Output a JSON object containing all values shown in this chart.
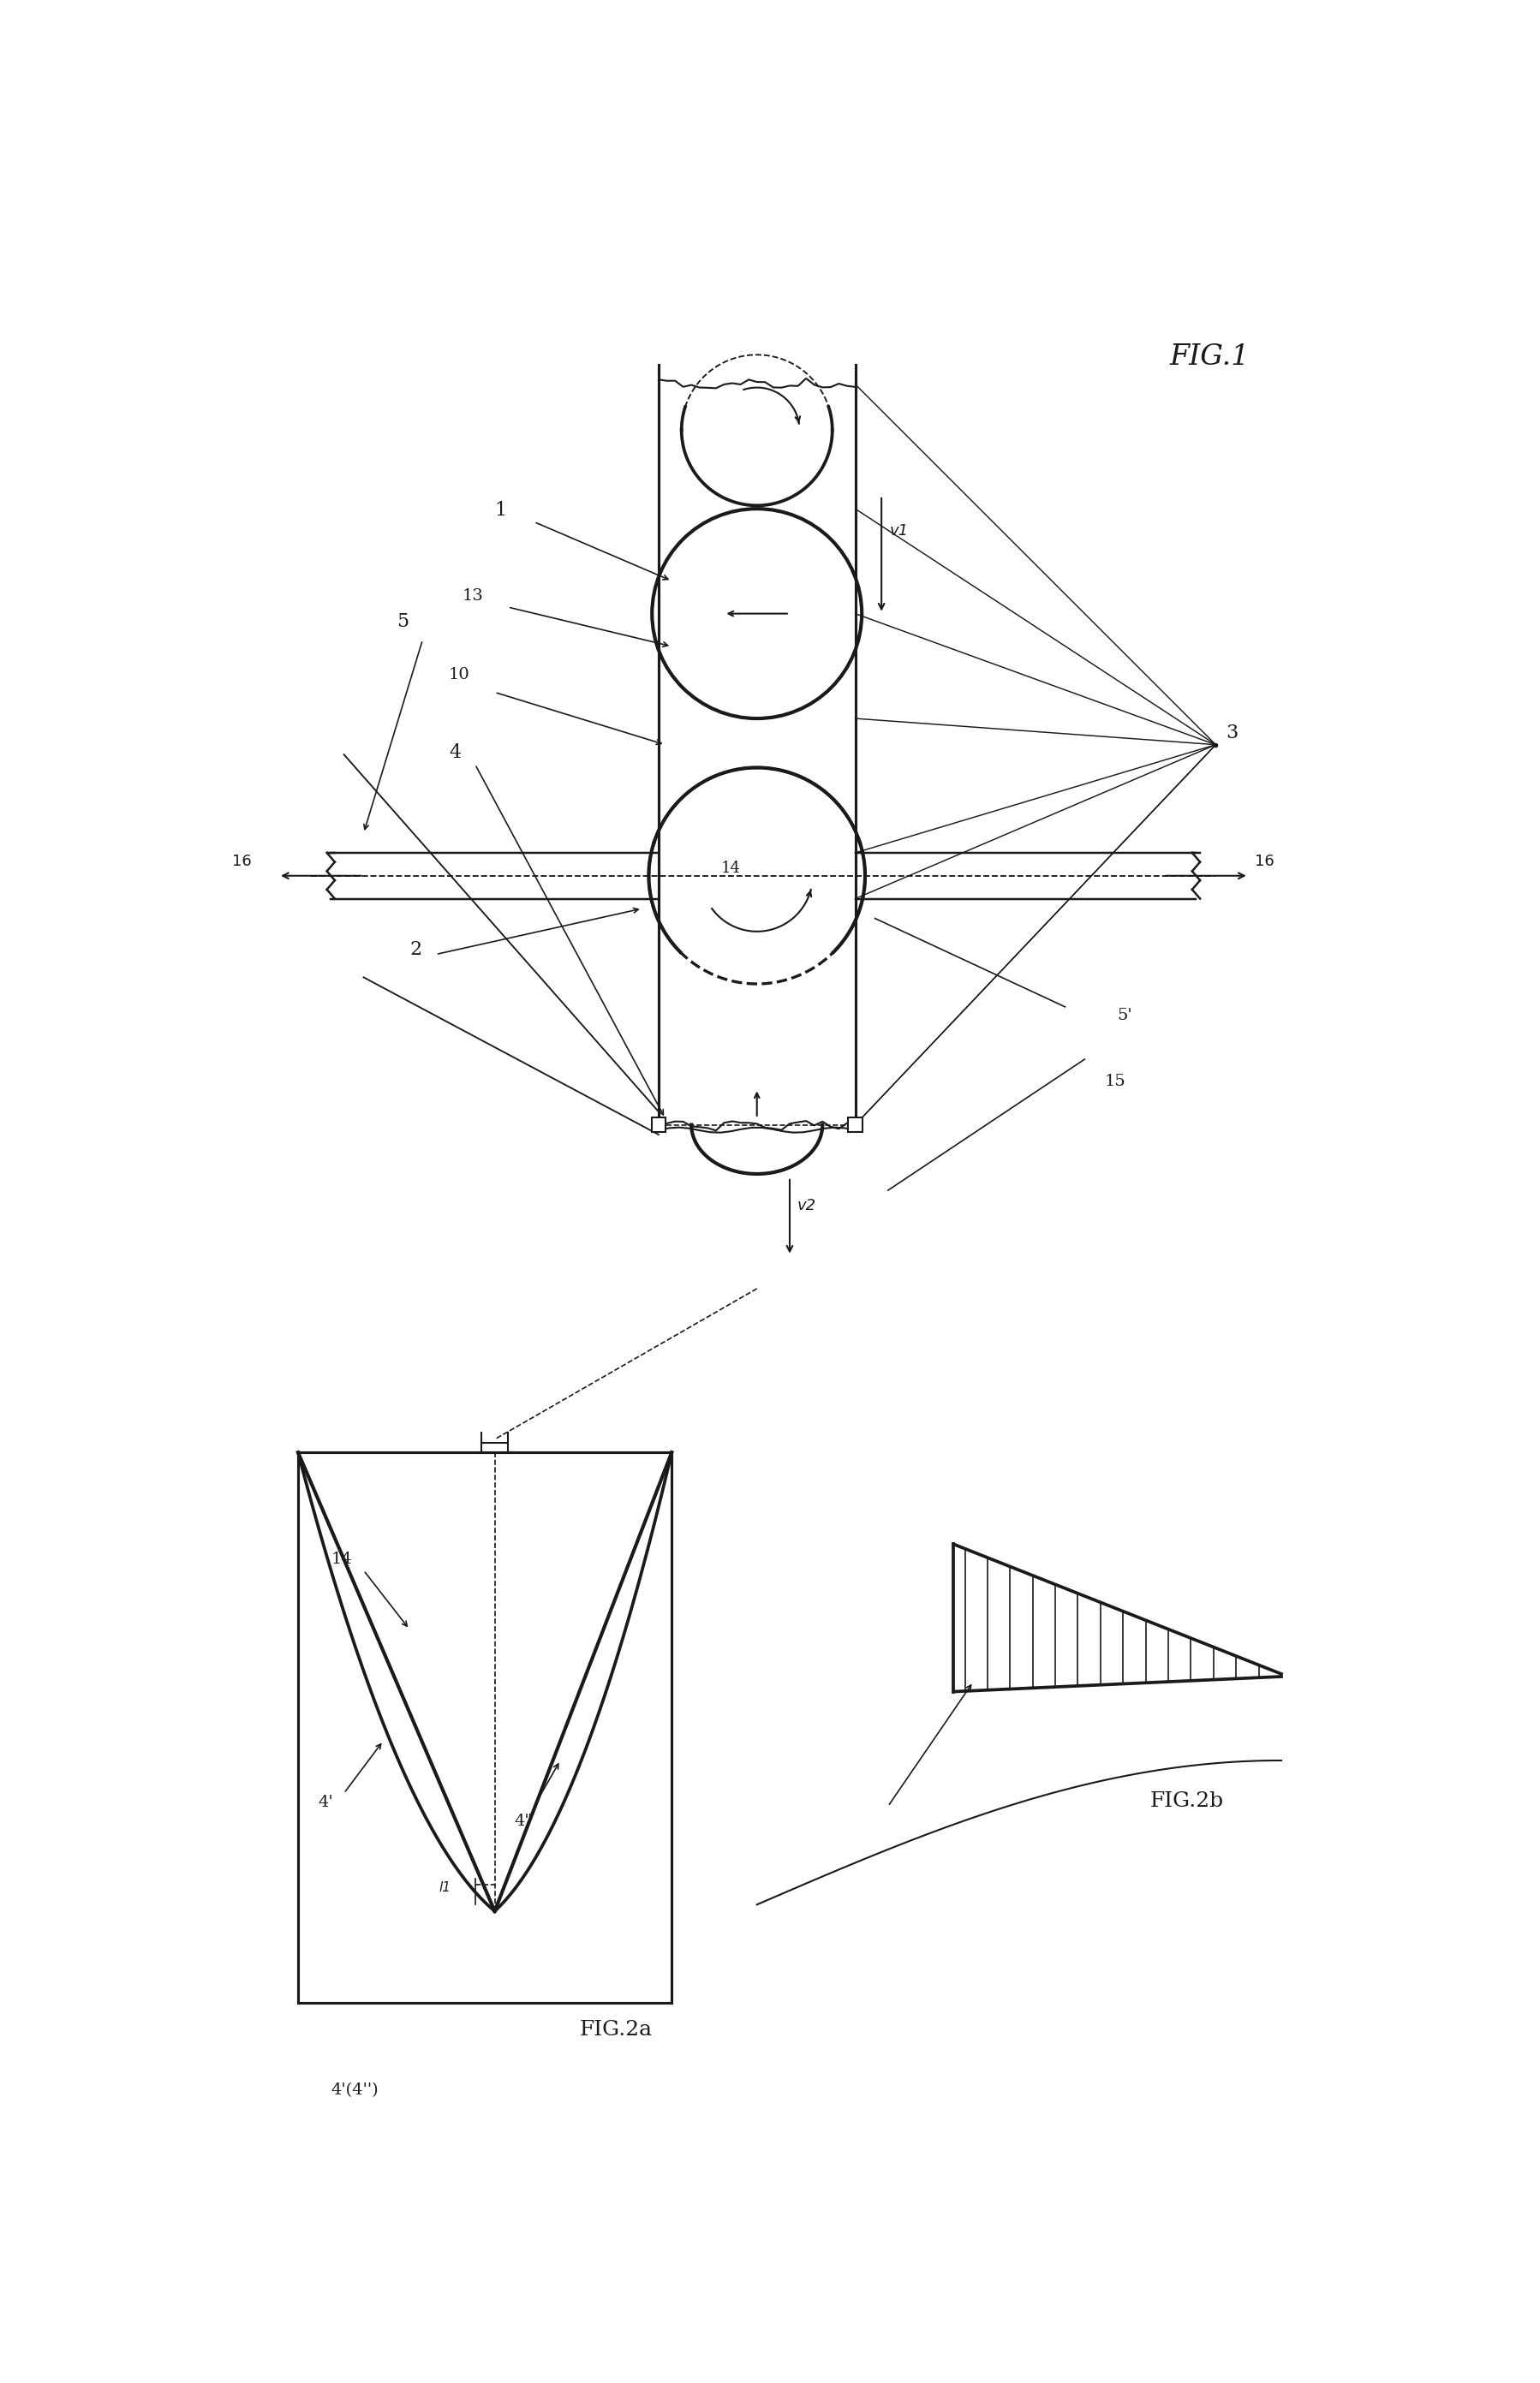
{
  "fig_width": 17.99,
  "fig_height": 27.83,
  "bg_color": "#ffffff",
  "line_color": "#1a1a1a",
  "title": "FIG.1",
  "title2a": "FIG.2a",
  "title2b": "FIG.2b"
}
